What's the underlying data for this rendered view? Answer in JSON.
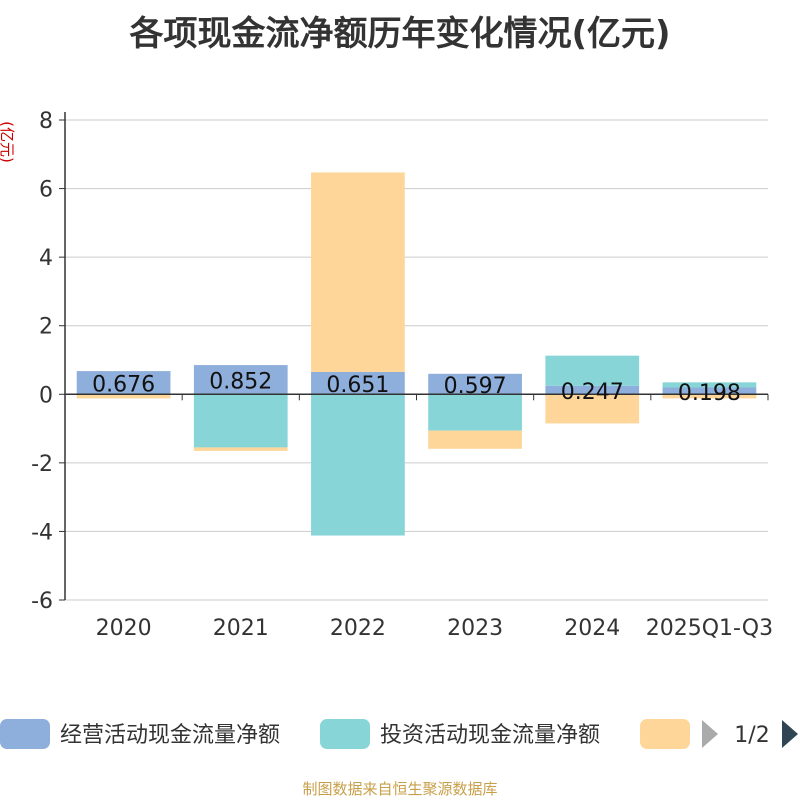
{
  "chart_data": {
    "type": "bar",
    "stacked": true,
    "title": "各项现金流净额历年变化情况(亿元)",
    "ylabel": "(亿元)",
    "xlabel": "",
    "categories": [
      "2020",
      "2021",
      "2022",
      "2023",
      "2024",
      "2025Q1-Q3"
    ],
    "ylim": [
      -6,
      8
    ],
    "yticks": [
      -6,
      -4,
      -2,
      0,
      2,
      4,
      6,
      8
    ],
    "grid": true,
    "series": [
      {
        "name": "经营活动现金流量净额",
        "color": "#8eaedb",
        "values": [
          0.676,
          0.852,
          0.651,
          0.597,
          0.247,
          0.198
        ]
      },
      {
        "name": "投资活动现金流量净额",
        "color": "#88d5d8",
        "values": [
          -0.02,
          -1.55,
          -4.12,
          -1.06,
          0.88,
          0.15
        ]
      },
      {
        "name": "",
        "color": "#ffd699",
        "values": [
          -0.1,
          -0.1,
          5.82,
          -0.53,
          -0.85,
          -0.12
        ]
      }
    ],
    "data_labels": [
      "0.676",
      "0.852",
      "0.651",
      "0.597",
      "0.247",
      "0.198"
    ],
    "legend": {
      "position": "bottom",
      "page": "1/2"
    }
  },
  "footer": "制图数据来自恒生聚源数据库"
}
